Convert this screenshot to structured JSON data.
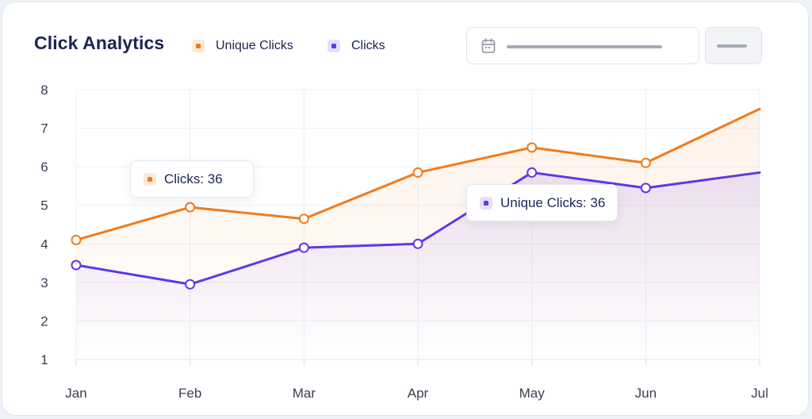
{
  "title": "Click Analytics",
  "legend": [
    {
      "label": "Unique Clicks",
      "color": "#f27a1a"
    },
    {
      "label": "Clicks",
      "color": "#6236e6"
    }
  ],
  "tooltips": [
    {
      "text": "Clicks: 36",
      "color": "#f27a1a"
    },
    {
      "text": "Unique Clicks: 36",
      "color": "#6236e6"
    }
  ],
  "chart_data": {
    "type": "area",
    "categories": [
      "Jan",
      "Feb",
      "Mar",
      "Apr",
      "May",
      "Jun",
      "Jul"
    ],
    "y_ticks": [
      "1",
      "2",
      "3",
      "4",
      "5",
      "6",
      "7",
      "8"
    ],
    "ylim": [
      1,
      8
    ],
    "grid": true,
    "legend_position": "top-left",
    "series": [
      {
        "name": "Unique Clicks",
        "color": "#f27a1a",
        "values": [
          4.1,
          4.95,
          4.65,
          5.85,
          6.5,
          6.1,
          7.5
        ]
      },
      {
        "name": "Clicks",
        "color": "#6236e6",
        "values": [
          3.45,
          2.95,
          3.9,
          4.0,
          5.85,
          5.45,
          5.85
        ]
      }
    ]
  }
}
